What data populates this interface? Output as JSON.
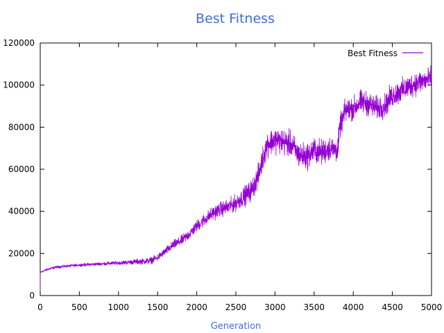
{
  "chart_data": {
    "type": "line",
    "title": "Best Fitness",
    "xlabel": "Generation",
    "ylabel": "",
    "xlim": [
      0,
      5000
    ],
    "ylim": [
      0,
      120000
    ],
    "x_ticks": [
      0,
      500,
      1000,
      1500,
      2000,
      2500,
      3000,
      3500,
      4000,
      4500,
      5000
    ],
    "y_ticks": [
      0,
      20000,
      40000,
      60000,
      80000,
      100000,
      120000
    ],
    "grid": false,
    "legend_position": "top-right",
    "colors": {
      "series": "#9400d3",
      "title": "#4169e1",
      "xlabel": "#4169e1"
    },
    "series": [
      {
        "name": "Best Fitness",
        "trend": [
          [
            0,
            11000
          ],
          [
            100,
            12500
          ],
          [
            200,
            13500
          ],
          [
            500,
            14500
          ],
          [
            1000,
            15500
          ],
          [
            1200,
            16000
          ],
          [
            1400,
            16500
          ],
          [
            1500,
            18000
          ],
          [
            1600,
            21000
          ],
          [
            1700,
            24000
          ],
          [
            1800,
            26000
          ],
          [
            1900,
            29000
          ],
          [
            2000,
            33000
          ],
          [
            2100,
            36000
          ],
          [
            2200,
            39000
          ],
          [
            2300,
            41000
          ],
          [
            2400,
            42000
          ],
          [
            2500,
            44000
          ],
          [
            2600,
            47000
          ],
          [
            2700,
            50000
          ],
          [
            2780,
            56000
          ],
          [
            2850,
            66000
          ],
          [
            2900,
            72000
          ],
          [
            3000,
            74000
          ],
          [
            3100,
            73000
          ],
          [
            3200,
            72000
          ],
          [
            3300,
            67000
          ],
          [
            3400,
            66000
          ],
          [
            3500,
            69000
          ],
          [
            3600,
            68000
          ],
          [
            3700,
            70000
          ],
          [
            3800,
            69000
          ],
          [
            3830,
            80000
          ],
          [
            3900,
            88000
          ],
          [
            4000,
            89000
          ],
          [
            4100,
            92000
          ],
          [
            4200,
            91000
          ],
          [
            4300,
            89000
          ],
          [
            4400,
            90000
          ],
          [
            4500,
            95000
          ],
          [
            4600,
            97000
          ],
          [
            4700,
            99000
          ],
          [
            4800,
            101000
          ],
          [
            4900,
            102000
          ],
          [
            5000,
            103000
          ]
        ],
        "noise": [
          [
            0,
            500
          ],
          [
            500,
            600
          ],
          [
            1000,
            800
          ],
          [
            1300,
            1200
          ],
          [
            1500,
            1500
          ],
          [
            2000,
            2500
          ],
          [
            2500,
            3500
          ],
          [
            2800,
            5000
          ],
          [
            3000,
            5500
          ],
          [
            3500,
            5500
          ],
          [
            3800,
            5000
          ],
          [
            4000,
            5000
          ],
          [
            4500,
            5000
          ],
          [
            5000,
            5000
          ]
        ]
      }
    ]
  }
}
